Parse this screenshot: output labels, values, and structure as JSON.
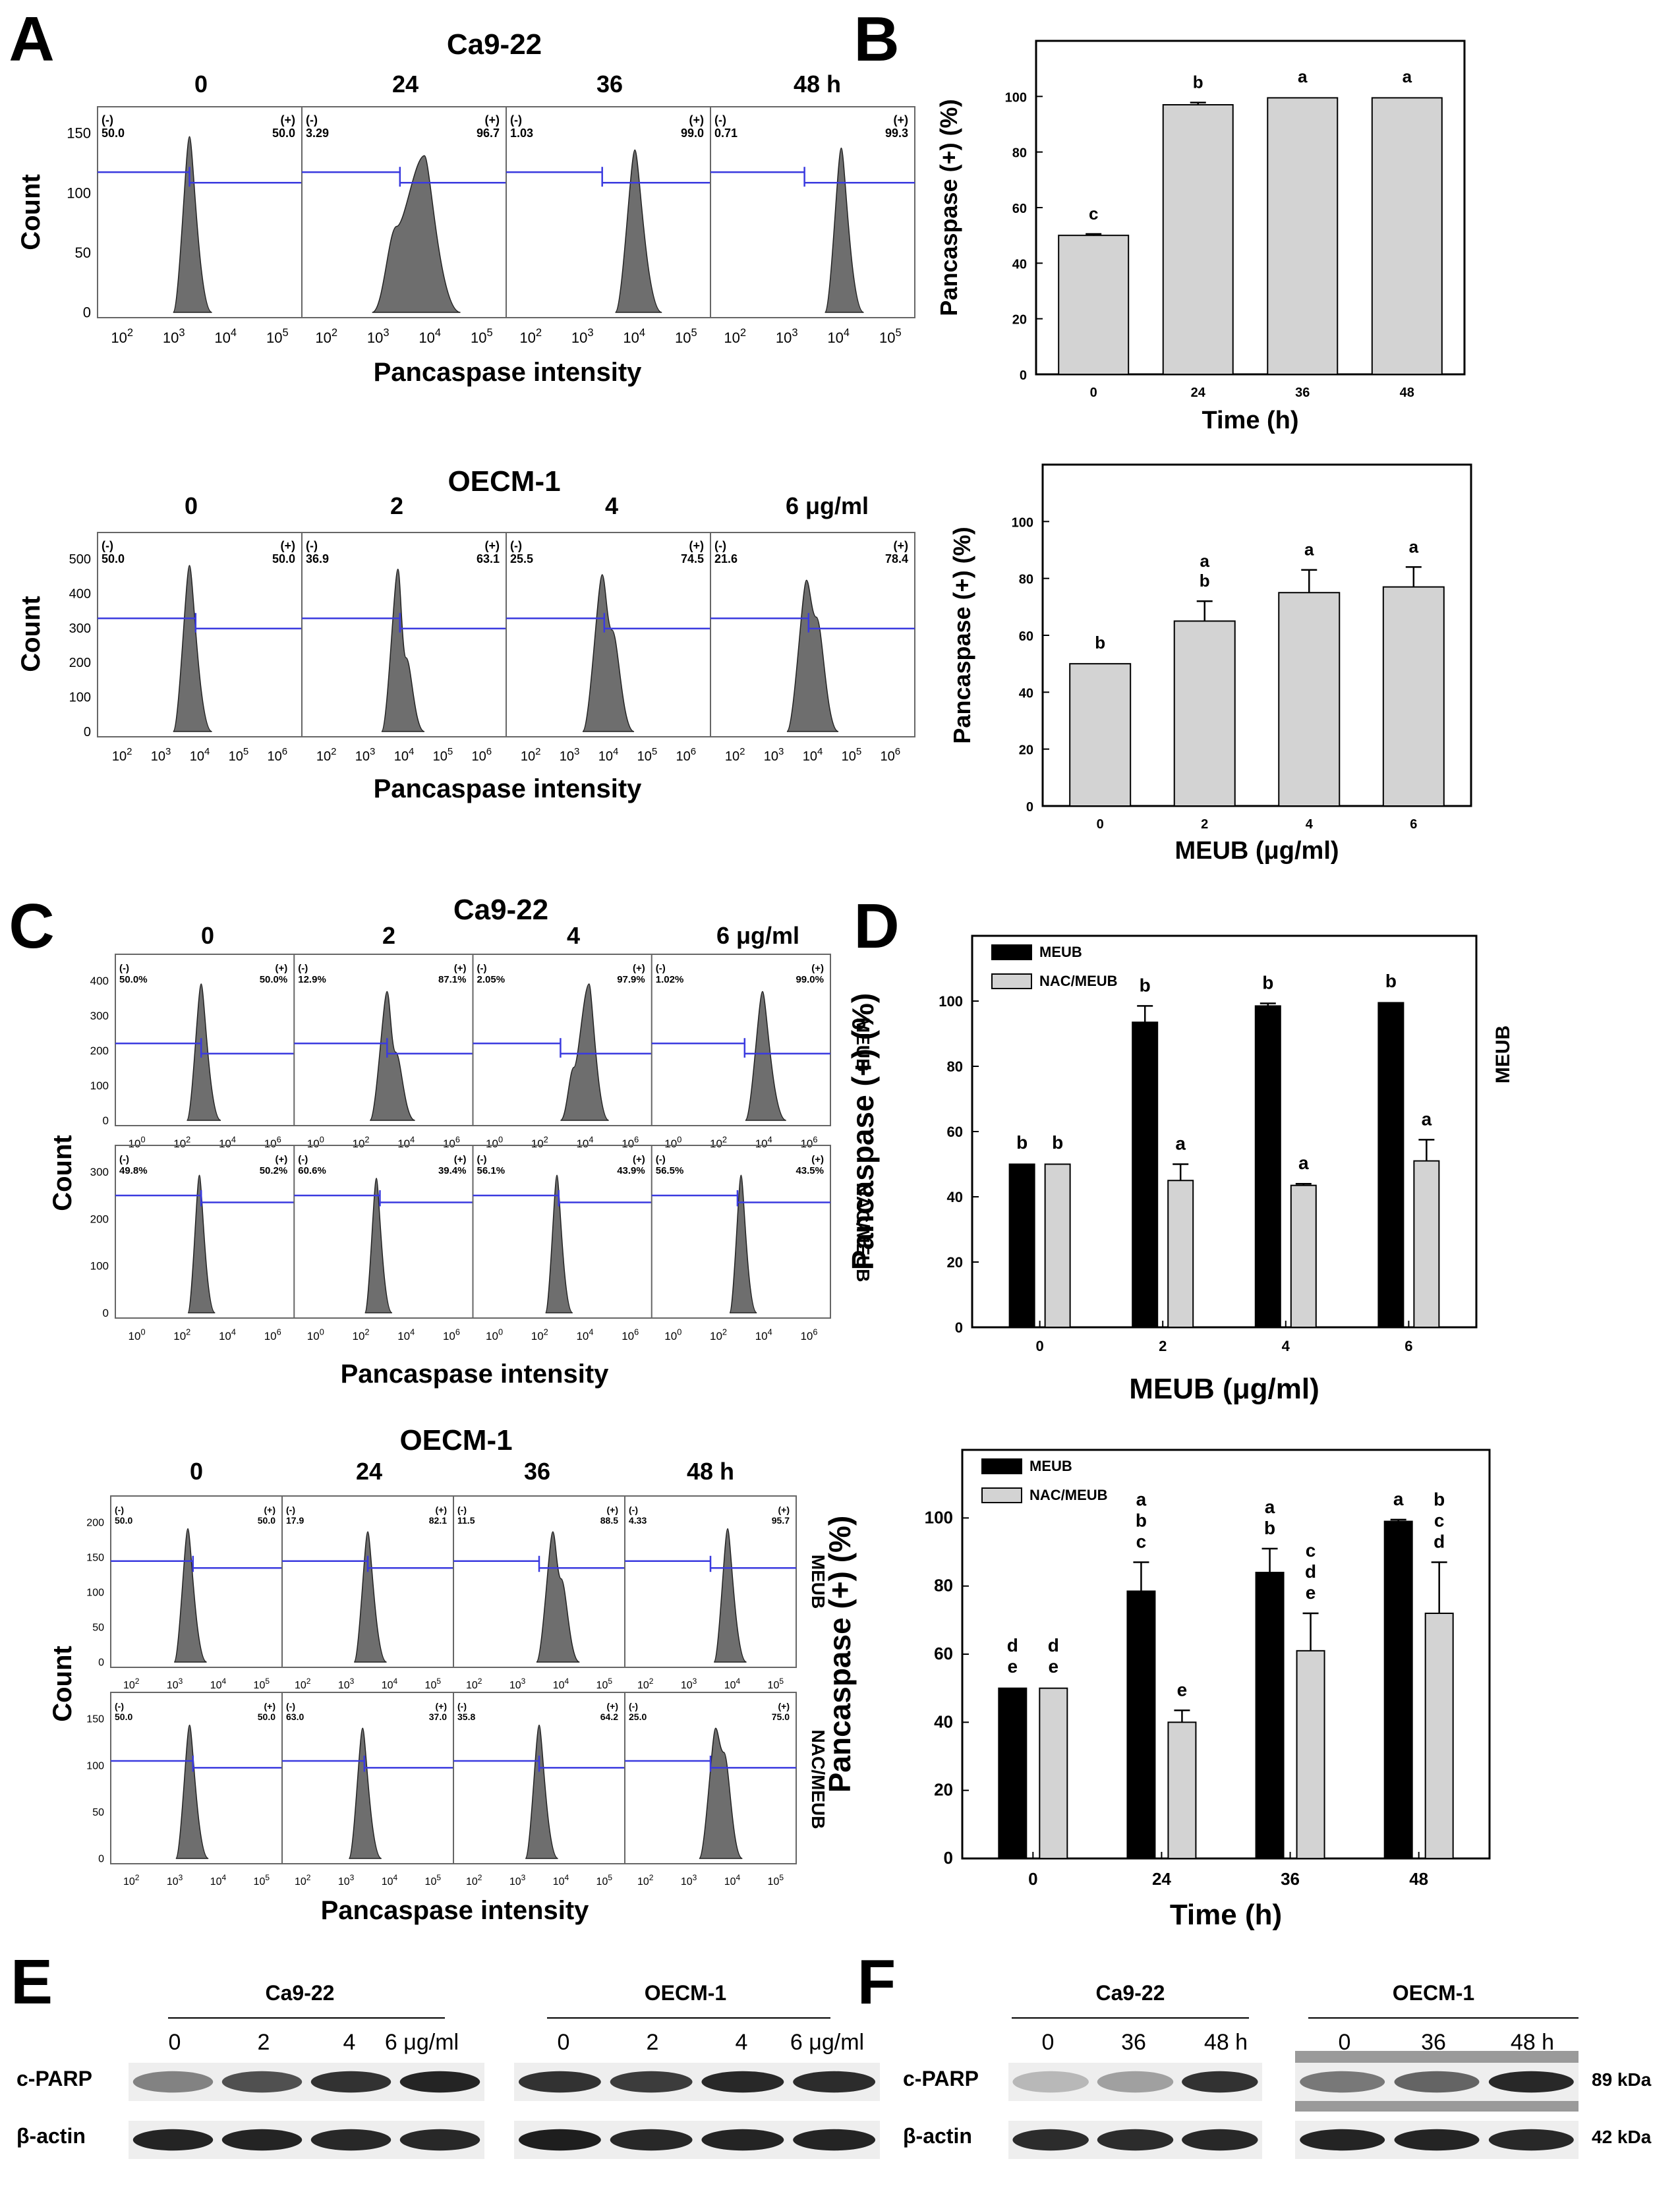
{
  "figure": {
    "panels": {
      "A": {
        "letter": "A",
        "top": {
          "title": "Ca9-22",
          "lanes": [
            "0",
            "24",
            "36",
            "48 h"
          ],
          "ylabel": "Count",
          "xlabel": "Pancaspase intensity",
          "yticks": [
            "150",
            "100",
            "50",
            "0"
          ],
          "xticks": [
            "10",
            "10",
            "10",
            "10"
          ],
          "xexp": [
            "2",
            "3",
            "4",
            "5"
          ],
          "neg": [
            "50.0",
            "3.29",
            "1.03",
            "0.71"
          ],
          "pos": [
            "50.0",
            "96.7",
            "99.0",
            "99.3"
          ]
        },
        "bottom": {
          "title": "OECM-1",
          "lanes": [
            "0",
            "2",
            "4",
            "6 μg/ml"
          ],
          "ylabel": "Count",
          "xlabel": "Pancaspase intensity",
          "yticks": [
            "500",
            "400",
            "300",
            "200",
            "100",
            "0"
          ],
          "xticks": [
            "10",
            "10",
            "10",
            "10",
            "10"
          ],
          "xexp": [
            "2",
            "3",
            "4",
            "5",
            "6"
          ],
          "neg": [
            "50.0",
            "36.9",
            "25.5",
            "21.6"
          ],
          "pos": [
            "50.0",
            "63.1",
            "74.5",
            "78.4"
          ]
        }
      },
      "B": {
        "letter": "B"
      },
      "C": {
        "letter": "C",
        "top": {
          "title": "Ca9-22",
          "lanes": [
            "0",
            "2",
            "4",
            "6 μg/ml"
          ],
          "ylabel": "Count",
          "xlabel": "Pancaspase intensity",
          "row_labels": [
            "MEUB",
            "NAC/MEUB"
          ],
          "yticks1": [
            "400",
            "300",
            "200",
            "100",
            "0"
          ],
          "yticks2": [
            "300",
            "200",
            "100",
            "0"
          ],
          "xticks": [
            "10",
            "10",
            "10",
            "10"
          ],
          "xexp": [
            "0",
            "2",
            "4",
            "6"
          ],
          "neg1": [
            "50.0%",
            "12.9%",
            "2.05%",
            "1.02%"
          ],
          "pos1": [
            "50.0%",
            "87.1%",
            "97.9%",
            "99.0%"
          ],
          "neg2": [
            "49.8%",
            "60.6%",
            "56.1%",
            "56.5%"
          ],
          "pos2": [
            "50.2%",
            "39.4%",
            "43.9%",
            "43.5%"
          ]
        },
        "bottom": {
          "title": "OECM-1",
          "lanes": [
            "0",
            "24",
            "36",
            "48 h"
          ],
          "ylabel": "Count",
          "xlabel": "Pancaspase intensity",
          "row_labels": [
            "MEUB",
            "NAC/MEUB"
          ],
          "yticks1": [
            "200",
            "150",
            "100",
            "50",
            "0"
          ],
          "yticks2": [
            "150",
            "100",
            "50",
            "0"
          ],
          "xticks": [
            "10",
            "10",
            "10",
            "10"
          ],
          "xexp": [
            "2",
            "3",
            "4",
            "5"
          ],
          "neg1": [
            "50.0",
            "17.9",
            "11.5",
            "4.33"
          ],
          "pos1": [
            "50.0",
            "82.1",
            "88.5",
            "95.7"
          ],
          "neg2": [
            "50.0",
            "63.0",
            "35.8",
            "25.0"
          ],
          "pos2": [
            "50.0",
            "37.0",
            "64.2",
            "75.0"
          ]
        }
      },
      "D": {
        "letter": "D"
      },
      "E": {
        "letter": "E",
        "groups": [
          "Ca9-22",
          "OECM-1"
        ],
        "lanes1": [
          "0",
          "2",
          "4",
          "6 μg/ml"
        ],
        "lanes2": [
          "0",
          "2",
          "4",
          "6 μg/ml"
        ],
        "rows": [
          "c-PARP",
          "β-actin"
        ]
      },
      "F": {
        "letter": "F",
        "groups": [
          "Ca9-22",
          "OECM-1"
        ],
        "lanes1": [
          "0",
          "36",
          "48 h"
        ],
        "lanes2": [
          "0",
          "36",
          "48 h"
        ],
        "rows": [
          "c-PARP",
          "β-actin"
        ],
        "sizes": [
          "89 kDa",
          "42 kDa"
        ]
      }
    }
  },
  "chart_data": [
    {
      "id": "B-top",
      "type": "bar",
      "categories": [
        "0",
        "24",
        "36",
        "48"
      ],
      "values": [
        50,
        97,
        99.5,
        99.5
      ],
      "errors": [
        0.5,
        0.8,
        0.3,
        0.3
      ],
      "letters": [
        "c",
        "b",
        "a",
        "a"
      ],
      "xlabel": "Time (h)",
      "ylabel": "Pancaspase (+) (%)",
      "ylim": [
        0,
        120
      ],
      "yticks": [
        0,
        20,
        40,
        60,
        80,
        100
      ]
    },
    {
      "id": "B-bottom",
      "type": "bar",
      "categories": [
        "0",
        "2",
        "4",
        "6"
      ],
      "values": [
        50,
        65,
        75,
        77
      ],
      "errors": [
        0.3,
        7,
        8,
        7
      ],
      "letters": [
        [
          "b"
        ],
        [
          "a",
          "b"
        ],
        [
          "a"
        ],
        [
          "a"
        ]
      ],
      "xlabel": "MEUB (μg/ml)",
      "ylabel": "Pancaspase (+) (%)",
      "ylim": [
        0,
        120
      ],
      "yticks": [
        0,
        20,
        40,
        60,
        80,
        100
      ]
    },
    {
      "id": "D-top",
      "type": "bar",
      "categories": [
        "0",
        "2",
        "4",
        "6"
      ],
      "series": [
        {
          "name": "MEUB",
          "color": "#000000",
          "values": [
            50,
            93.5,
            98.5,
            99.5
          ],
          "errors": [
            0.3,
            5,
            0.8,
            0.3
          ],
          "letters": [
            [
              "b"
            ],
            [
              "b"
            ],
            [
              "b"
            ],
            [
              "b"
            ]
          ]
        },
        {
          "name": "NAC/MEUB",
          "color": "#d3d3d3",
          "values": [
            50,
            45,
            43.5,
            51
          ],
          "errors": [
            0.3,
            5,
            0.5,
            6.5
          ],
          "letters": [
            [
              "b"
            ],
            [
              "a"
            ],
            [
              "a"
            ],
            [
              "a"
            ]
          ]
        }
      ],
      "xlabel": "MEUB (μg/ml)",
      "ylabel": "Pancaspase (+) (%)",
      "ylim": [
        0,
        120
      ],
      "yticks": [
        0,
        20,
        40,
        60,
        80,
        100
      ],
      "legend": "top-left"
    },
    {
      "id": "D-bottom",
      "type": "bar",
      "categories": [
        "0",
        "24",
        "36",
        "48"
      ],
      "series": [
        {
          "name": "MEUB",
          "color": "#000000",
          "values": [
            50,
            78.5,
            84,
            99
          ],
          "errors": [
            0.3,
            8.5,
            7,
            0.5
          ],
          "letters": [
            [
              "d",
              "e"
            ],
            [
              "a",
              "b",
              "c"
            ],
            [
              "a",
              "b"
            ],
            [
              "a"
            ]
          ]
        },
        {
          "name": "NAC/MEUB",
          "color": "#d3d3d3",
          "values": [
            50,
            40,
            61,
            72
          ],
          "errors": [
            0.3,
            3.5,
            11,
            15
          ],
          "letters": [
            [
              "d",
              "e"
            ],
            [
              "e"
            ],
            [
              "c",
              "d",
              "e"
            ],
            [
              "b",
              "c",
              "d"
            ]
          ]
        }
      ],
      "xlabel": "Time (h)",
      "ylabel": "Pancaspase (+) (%)",
      "ylim": [
        0,
        120
      ],
      "yticks": [
        0,
        20,
        40,
        60,
        80,
        100
      ],
      "legend": "top-left"
    }
  ]
}
